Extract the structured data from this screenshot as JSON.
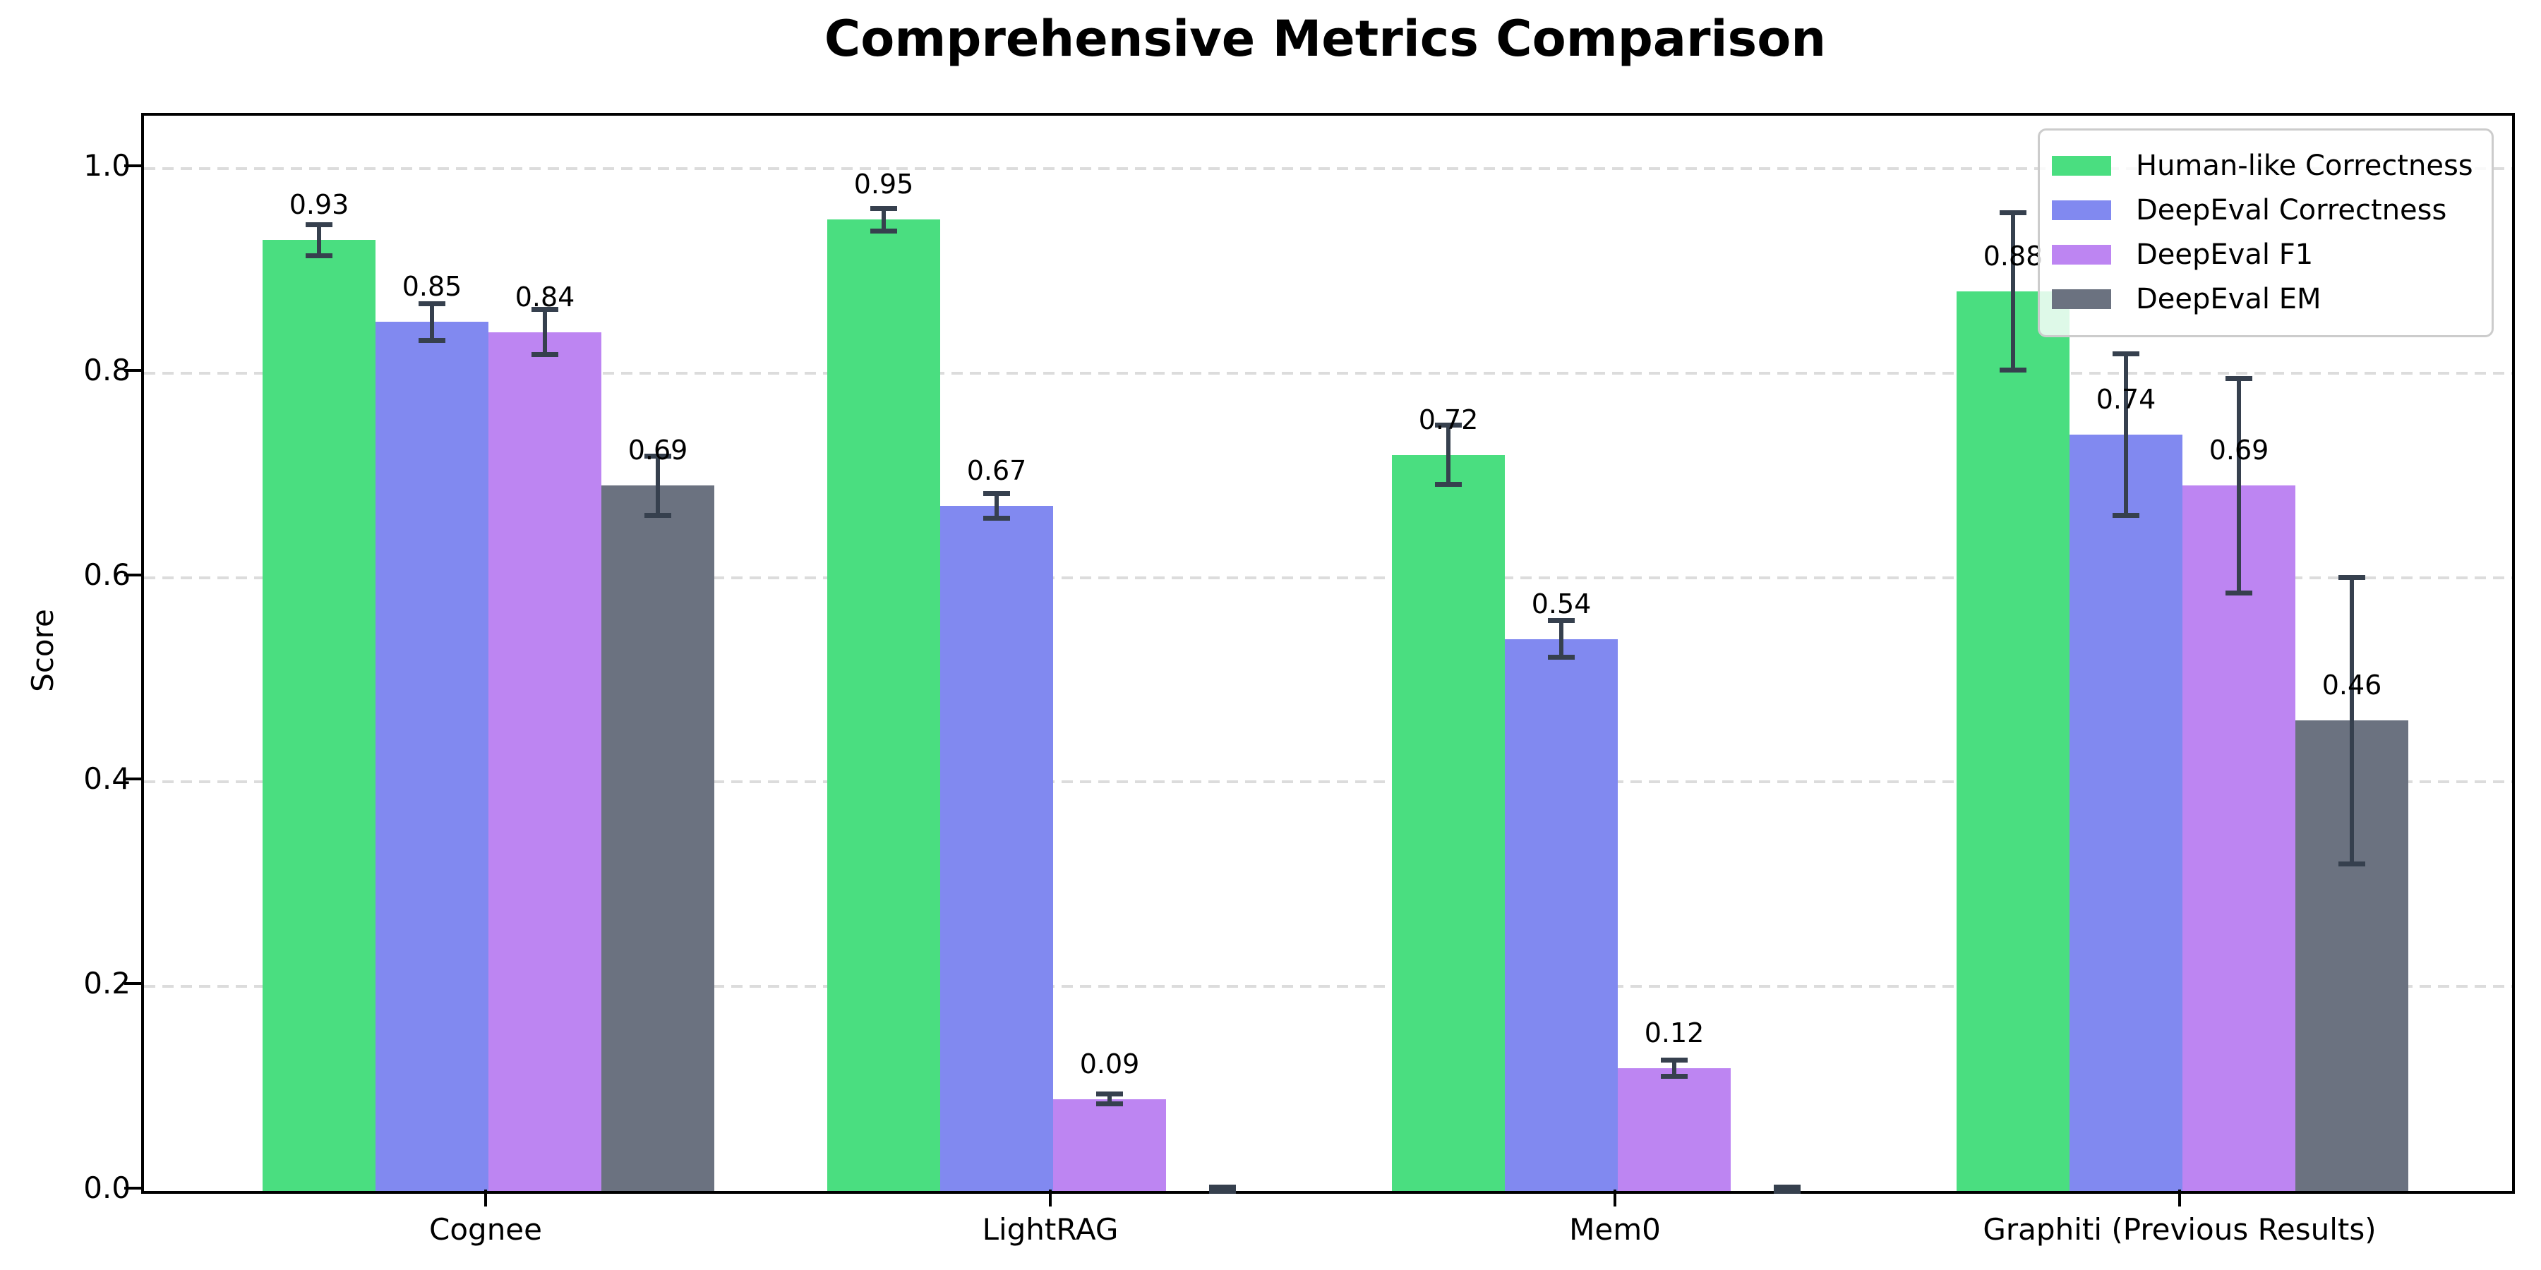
{
  "title": "Comprehensive Metrics Comparison",
  "chart_data": {
    "type": "bar",
    "title": "Comprehensive Metrics Comparison",
    "xlabel": "",
    "ylabel": "Score",
    "ylim": [
      0.0,
      1.052
    ],
    "yticks": [
      "0.0",
      "0.2",
      "0.4",
      "0.6",
      "0.8",
      "1.0"
    ],
    "grid": "horizontal dashed",
    "legend_position": "upper right",
    "categories": [
      "Cognee",
      "LightRAG",
      "Mem0",
      "Graphiti (Previous Results)"
    ],
    "series": [
      {
        "name": "Human-like Correctness",
        "color": "#4ade80",
        "values": [
          0.93,
          0.95,
          0.72,
          0.88
        ],
        "errors": [
          0.015,
          0.011,
          0.029,
          0.077
        ],
        "labels": [
          "0.93",
          "0.95",
          "0.72",
          "0.88"
        ]
      },
      {
        "name": "DeepEval Correctness",
        "color": "#8189f0",
        "values": [
          0.85,
          0.67,
          0.54,
          0.74
        ],
        "errors": [
          0.018,
          0.012,
          0.018,
          0.079
        ],
        "labels": [
          "0.85",
          "0.67",
          "0.54",
          "0.74"
        ]
      },
      {
        "name": "DeepEval F1",
        "color": "#bd85f2",
        "values": [
          0.84,
          0.09,
          0.12,
          0.69
        ],
        "errors": [
          0.022,
          0.005,
          0.008,
          0.105
        ],
        "labels": [
          "0.84",
          "0.09",
          "0.12",
          "0.69"
        ]
      },
      {
        "name": "DeepEval EM",
        "color": "#6b7280",
        "values": [
          0.69,
          0.0,
          0.0,
          0.46
        ],
        "errors": [
          0.029,
          0.004,
          0.004,
          0.14
        ],
        "labels": [
          "0.69",
          null,
          null,
          "0.46"
        ]
      }
    ],
    "error_bar_color": "#36404e"
  }
}
